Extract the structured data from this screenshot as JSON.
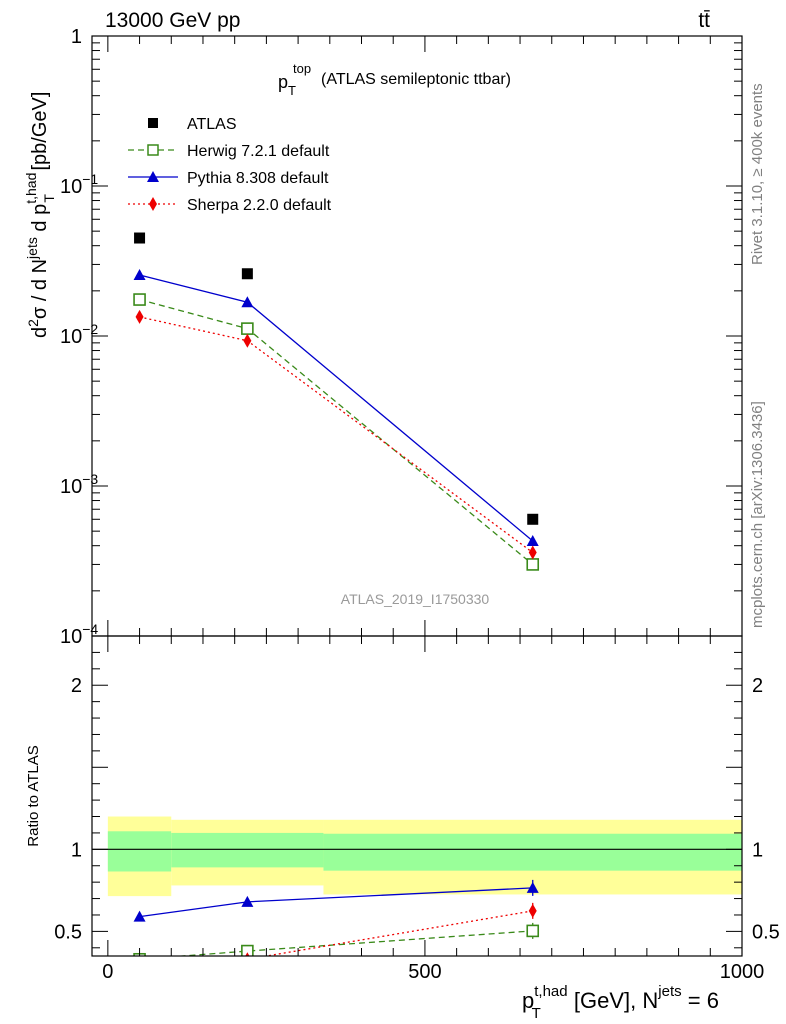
{
  "header": {
    "energy_label": "13000 GeV pp",
    "process_label": "tt̄"
  },
  "side_labels": {
    "rivet": "Rivet 3.1.10, ≥ 400k events",
    "mcplots": "mcplots.cern.ch [arXiv:1306.3436]"
  },
  "chart_data": [
    {
      "type": "scatter",
      "panel": "main",
      "title_main": "p",
      "title_sup": "top",
      "title_sub": "T",
      "title_rest": "(ATLAS semileptonic ttbar)",
      "ylabel": "d²σ / d N^jets d p_T^t,had [pb/GeV]",
      "yscale": "log",
      "ylim": [
        0.0001,
        1
      ],
      "xlim": [
        -25,
        1000
      ],
      "y_ticks": [
        {
          "value": 1,
          "label": "1"
        },
        {
          "value": 0.1,
          "label": "10",
          "exp": "−1"
        },
        {
          "value": 0.01,
          "label": "10",
          "exp": "−2"
        },
        {
          "value": 0.001,
          "label": "10",
          "exp": "−3"
        },
        {
          "value": 0.0001,
          "label": "10",
          "exp": "−4"
        }
      ],
      "watermark": "ATLAS_2019_I1750330",
      "legend_position": "top-left",
      "data": {
        "name": "ATLAS",
        "x": [
          50,
          220,
          670
        ],
        "y": [
          0.045,
          0.026,
          0.0006
        ]
      },
      "series": [
        {
          "name": "Herwig 7.2.1 default",
          "color": "#3a8a1a",
          "dash": "6,4",
          "marker": "open-square",
          "x": [
            50,
            220,
            670
          ],
          "y": [
            0.0175,
            0.0112,
            0.0003
          ]
        },
        {
          "name": "Pythia 8.308 default",
          "color": "#0000cc",
          "dash": "",
          "marker": "triangle",
          "x": [
            50,
            220,
            670
          ],
          "y": [
            0.0255,
            0.0168,
            0.00043
          ]
        },
        {
          "name": "Sherpa 2.2.0 default",
          "color": "#ee0000",
          "dash": "2,3",
          "marker": "diamond",
          "x": [
            50,
            220,
            670
          ],
          "y": [
            0.0134,
            0.0093,
            0.00036
          ]
        }
      ]
    },
    {
      "type": "line",
      "panel": "ratio",
      "ylabel": "Ratio to ATLAS",
      "xlabel": "p_T^t,had [GeV], N^jets = 6",
      "xlim": [
        -25,
        1000
      ],
      "ylim": [
        0.35,
        2.3
      ],
      "x_ticks": [
        0,
        500,
        1000
      ],
      "y_ticks": [
        0.5,
        1,
        2
      ],
      "bands": [
        {
          "x0": 0,
          "x1": 100,
          "yellow": [
            0.715,
            1.2
          ],
          "green": [
            0.865,
            1.11
          ]
        },
        {
          "x0": 100,
          "x1": 340,
          "yellow": [
            0.78,
            1.18
          ],
          "green": [
            0.89,
            1.1
          ]
        },
        {
          "x0": 340,
          "x1": 1000,
          "yellow": [
            0.725,
            1.18
          ],
          "green": [
            0.87,
            1.095
          ]
        }
      ],
      "series": [
        {
          "name": "Herwig 7.2.1 default",
          "x": [
            50,
            220,
            670
          ],
          "y": [
            0.33,
            0.38,
            0.503
          ]
        },
        {
          "name": "Pythia 8.308 default",
          "x": [
            50,
            220,
            670
          ],
          "y": [
            0.59,
            0.68,
            0.765
          ]
        },
        {
          "name": "Sherpa 2.2.0 default",
          "x": [
            50,
            220,
            670
          ],
          "y": [
            0.28,
            0.33,
            0.625
          ]
        }
      ]
    }
  ]
}
